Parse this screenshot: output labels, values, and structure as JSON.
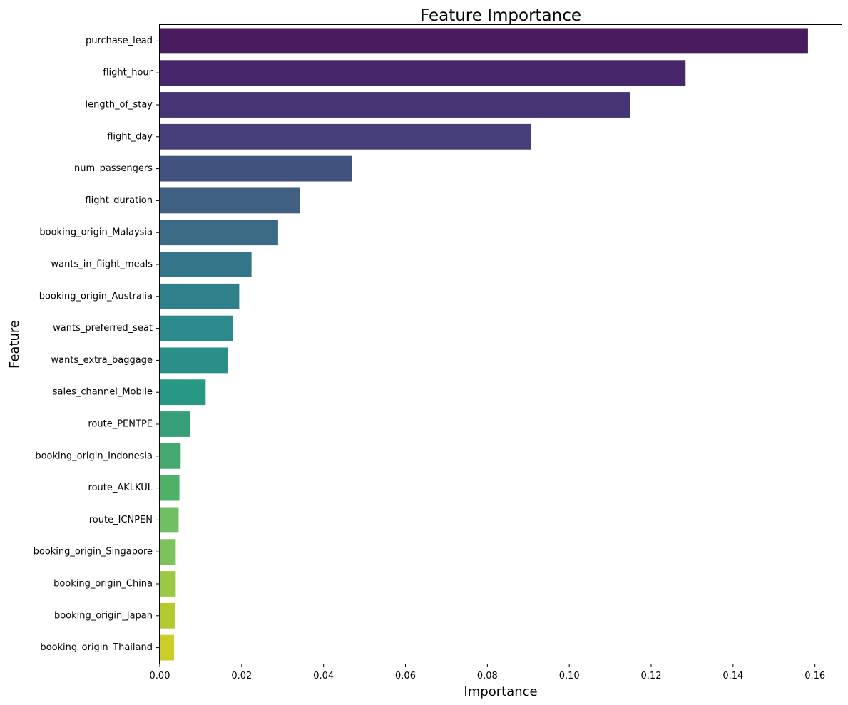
{
  "chart_data": {
    "type": "bar",
    "orientation": "horizontal",
    "title": "Feature Importance",
    "xlabel": "Importance",
    "ylabel": "Feature",
    "xlim": [
      0,
      0.1665
    ],
    "xticks": [
      0.0,
      0.02,
      0.04,
      0.06,
      0.08,
      0.1,
      0.12,
      0.14,
      0.16
    ],
    "xtick_labels": [
      "0.00",
      "0.02",
      "0.04",
      "0.06",
      "0.08",
      "0.10",
      "0.12",
      "0.14",
      "0.16"
    ],
    "grid": false,
    "categories": [
      "purchase_lead",
      "flight_hour",
      "length_of_stay",
      "flight_day",
      "num_passengers",
      "flight_duration",
      "booking_origin_Malaysia",
      "wants_in_flight_meals",
      "booking_origin_Australia",
      "wants_preferred_seat",
      "wants_extra_baggage",
      "sales_channel_Mobile",
      "route_PENTPE",
      "booking_origin_Indonesia",
      "route_AKLKUL",
      "route_ICNPEN",
      "booking_origin_Singapore",
      "booking_origin_China",
      "booking_origin_Japan",
      "booking_origin_Thailand"
    ],
    "values": [
      0.1583,
      0.1284,
      0.1148,
      0.0907,
      0.047,
      0.0342,
      0.0289,
      0.0224,
      0.0194,
      0.0178,
      0.0167,
      0.0112,
      0.0075,
      0.0051,
      0.0048,
      0.0046,
      0.0039,
      0.0039,
      0.0037,
      0.0035
    ],
    "colors": [
      "#481c5e",
      "#48266c",
      "#473474",
      "#463f7a",
      "#42527e",
      "#3f6080",
      "#3a6a84",
      "#33768a",
      "#30808c",
      "#2d8a8c",
      "#2a8f88",
      "#289784",
      "#38a078",
      "#44a86f",
      "#4fb167",
      "#70bf63",
      "#7bc35a",
      "#9cc944",
      "#b5ca31",
      "#cccd26"
    ]
  }
}
